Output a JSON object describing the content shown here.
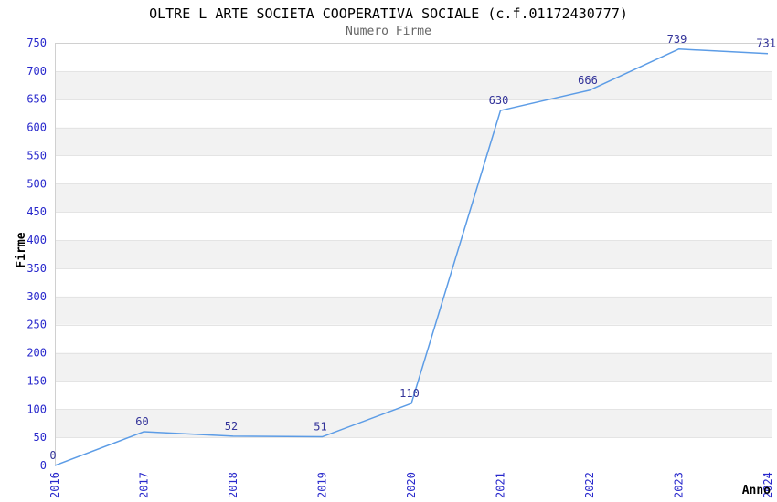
{
  "page": {
    "title": "OLTRE L ARTE SOCIETA COOPERATIVA SOCIALE (c.f.01172430777)",
    "subtitle": "Numero Firme"
  },
  "chart_data": {
    "type": "line",
    "title": "OLTRE L ARTE SOCIETA COOPERATIVA SOCIALE (c.f.01172430777)",
    "subtitle": "Numero Firme",
    "xlabel": "Anno",
    "ylabel": "Firme",
    "categories": [
      "2016",
      "2017",
      "2018",
      "2019",
      "2020",
      "2021",
      "2022",
      "2023",
      "2024"
    ],
    "values": [
      0,
      60,
      52,
      51,
      110,
      630,
      666,
      739,
      731
    ],
    "series": [
      {
        "name": "Numero Firme",
        "values": [
          0,
          60,
          52,
          51,
          110,
          630,
          666,
          739,
          731
        ]
      }
    ],
    "ylim": [
      0,
      750
    ],
    "ytick_step": 50,
    "yticks": [
      0,
      50,
      100,
      150,
      200,
      250,
      300,
      350,
      400,
      450,
      500,
      550,
      600,
      650,
      700,
      750
    ],
    "grid": "horizontal alternating bands",
    "legend_position": "none",
    "data_labels_visible": true,
    "x_tick_rotation_degrees": 90,
    "colors": {
      "line": "#5C9CE6",
      "tick_label": "#2828CC",
      "data_label": "#333399",
      "band_fill": "#F2F2F2",
      "gridline": "#E4E4E4",
      "plot_border": "#D0D0D0",
      "title": "#000000",
      "subtitle": "#666666",
      "axis_title": "#000000",
      "background": "#FFFFFF"
    }
  }
}
